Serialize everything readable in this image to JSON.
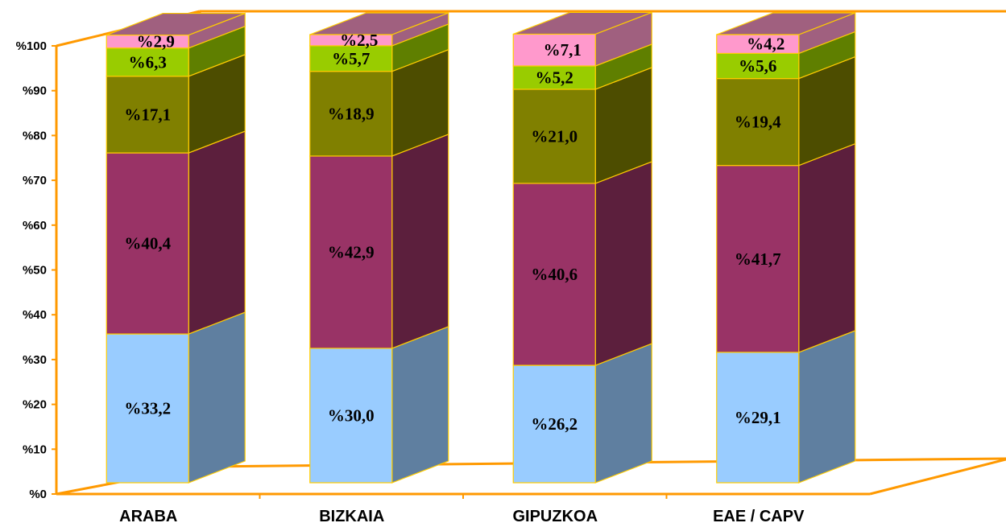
{
  "chart_data": {
    "type": "bar",
    "stacked": true,
    "three_d": true,
    "y_axis_prefix": "%",
    "ylim": [
      0,
      100
    ],
    "y_ticks": [
      "%0",
      "%10",
      "%20",
      "%30",
      "%40",
      "%50",
      "%60",
      "%70",
      "%80",
      "%90",
      "%100"
    ],
    "categories": [
      "ARABA",
      "BIZKAIA",
      "GIPUZKOA",
      "EAE / CAPV"
    ],
    "series": [
      {
        "values": [
          33.2,
          30.0,
          26.2,
          29.1
        ],
        "labels": [
          "%33,2",
          "%30,0",
          "%26,2",
          "%29,1"
        ],
        "color": "#99ccff",
        "side_color": "#5f7fa0"
      },
      {
        "values": [
          40.4,
          42.9,
          40.6,
          41.7
        ],
        "labels": [
          "%40,4",
          "%42,9",
          "%40,6",
          "%41,7"
        ],
        "color": "#993366",
        "side_color": "#5c1f3d"
      },
      {
        "values": [
          17.1,
          18.9,
          21.0,
          19.4
        ],
        "labels": [
          "%17,1",
          "%18,9",
          "%21,0",
          "%19,4"
        ],
        "color": "#808000",
        "side_color": "#4d4d00"
      },
      {
        "values": [
          6.3,
          5.7,
          5.2,
          5.6
        ],
        "labels": [
          "%6,3",
          "%5,7",
          "%5,2",
          "%5,6"
        ],
        "color": "#99cc00",
        "side_color": "#5f7f00"
      },
      {
        "values": [
          2.9,
          2.5,
          7.1,
          4.2
        ],
        "labels": [
          "%2,9",
          "%2,5",
          "%7,1",
          "%4,2"
        ],
        "color": "#ff99cc",
        "side_color": "#a0607f"
      }
    ],
    "colors": {
      "axis": "#ff9900",
      "edge": "#ffcc00"
    },
    "grid": false,
    "legend": "none"
  }
}
